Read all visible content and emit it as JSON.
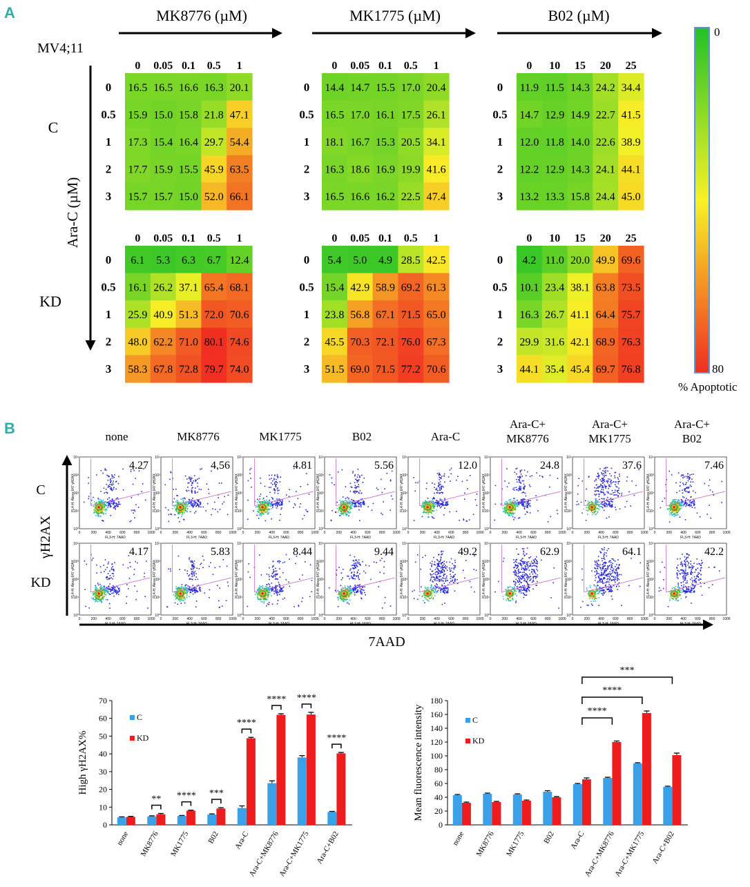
{
  "panel_a": {
    "label": "A",
    "cell_line": "MV4;11",
    "drug_headers": [
      "MK8776 (µM)",
      "MK1775 (µM)",
      "B02 (µM)"
    ],
    "y_axis_label": "Ara-C  (µM)",
    "row_group_labels": [
      "C",
      "KD"
    ],
    "row_labels": [
      "0",
      "0.5",
      "1",
      "2",
      "3"
    ],
    "col_headers": [
      [
        "0",
        "0.05",
        "0.1",
        "0.5",
        "1"
      ],
      [
        "0",
        "0.05",
        "0.1",
        "0.5",
        "1"
      ],
      [
        "0",
        "10",
        "15",
        "20",
        "25"
      ]
    ],
    "heatmaps": [
      [
        [
          [
            16.5,
            16.5,
            16.6,
            16.3,
            20.1
          ],
          [
            15.9,
            15.0,
            15.8,
            21.8,
            47.1
          ],
          [
            17.3,
            15.4,
            16.4,
            29.7,
            54.4
          ],
          [
            17.7,
            15.9,
            15.5,
            45.9,
            63.5
          ],
          [
            15.7,
            15.7,
            15.0,
            52.0,
            66.1
          ]
        ],
        [
          [
            14.4,
            14.7,
            15.5,
            17.0,
            20.4
          ],
          [
            16.5,
            17.0,
            16.1,
            17.5,
            26.1
          ],
          [
            18.1,
            16.7,
            15.3,
            20.5,
            34.1
          ],
          [
            16.3,
            18.6,
            16.9,
            19.9,
            41.6
          ],
          [
            16.5,
            16.6,
            16.2,
            22.5,
            47.4
          ]
        ],
        [
          [
            11.9,
            11.5,
            14.3,
            24.2,
            34.4
          ],
          [
            14.7,
            12.9,
            14.9,
            22.7,
            41.5
          ],
          [
            12.0,
            11.8,
            14.0,
            22.6,
            38.9
          ],
          [
            12.2,
            12.9,
            14.3,
            24.1,
            44.1
          ],
          [
            13.2,
            13.3,
            15.8,
            24.4,
            45.0
          ]
        ]
      ],
      [
        [
          [
            6.1,
            5.3,
            6.3,
            6.7,
            12.4
          ],
          [
            16.1,
            26.2,
            37.1,
            65.4,
            68.1
          ],
          [
            25.9,
            40.9,
            51.3,
            72.0,
            70.6
          ],
          [
            48.0,
            62.2,
            71.0,
            80.1,
            74.6
          ],
          [
            58.3,
            67.8,
            72.8,
            79.7,
            74.0
          ]
        ],
        [
          [
            5.4,
            5.0,
            4.9,
            28.5,
            42.5
          ],
          [
            15.4,
            42.9,
            58.9,
            69.2,
            61.3
          ],
          [
            23.8,
            56.8,
            67.1,
            71.5,
            65.0
          ],
          [
            45.5,
            70.3,
            72.1,
            76.0,
            67.3
          ],
          [
            51.5,
            69.0,
            71.5,
            77.2,
            70.6
          ]
        ],
        [
          [
            4.2,
            11.0,
            20.0,
            49.9,
            69.6
          ],
          [
            10.1,
            23.4,
            38.1,
            63.8,
            73.5
          ],
          [
            16.3,
            26.7,
            41.1,
            64.4,
            75.7
          ],
          [
            29.9,
            31.6,
            42.1,
            68.9,
            76.3
          ],
          [
            44.1,
            35.4,
            45.4,
            69.7,
            76.8
          ]
        ]
      ]
    ],
    "colorbar": {
      "min_label": "0",
      "max_label": "80",
      "min": 0,
      "max": 80,
      "title": "% Apoptotic",
      "colors": [
        "#22c227",
        "#f8f227",
        "#f02f22"
      ]
    }
  },
  "panel_b": {
    "label": "B",
    "conditions": [
      "none",
      "MK8776",
      "MK1775",
      "B02",
      "Ara-C",
      "Ara-C+ MK8776",
      "Ara-C+ MK1775",
      "Ara-C+ B02"
    ],
    "row_labels": [
      "C",
      "KD"
    ],
    "y_axis_label": "γH2AX",
    "x_axis_label": "7AAD",
    "flow_values": [
      [
        "4.27",
        "4.56",
        "4.81",
        "5.56",
        "12.0",
        "24.8",
        "37.6",
        "7.46"
      ],
      [
        "4.17",
        "5.83",
        "8.44",
        "9.44",
        "49.2",
        "62.9",
        "64.1",
        "42.2"
      ]
    ],
    "flow_y_ticks": [
      "10⁰",
      "10¹",
      "10²",
      "10³",
      "10⁴"
    ],
    "flow_x_ticks": [
      "0",
      "200",
      "400",
      "600",
      "800",
      "1000"
    ],
    "flow_x_title": "FL3-H: 7AAD",
    "flow_y_title": "FL4-H: Alexa 647 γH2AX"
  },
  "chart_data": [
    {
      "type": "bar",
      "title": "",
      "xlabel": "",
      "ylabel": "High γH2AX%",
      "ylim": [
        0,
        70
      ],
      "yticks": [
        0,
        10,
        20,
        30,
        40,
        50,
        60,
        70
      ],
      "categories": [
        "none",
        "MK8776",
        "MK1775",
        "B02",
        "Ara-C",
        "Ara-C+MK8776",
        "Ara-C+MK1775",
        "Ara-C+B02"
      ],
      "series": [
        {
          "name": "C",
          "color": "#3aa0e8",
          "values": [
            4.2,
            4.8,
            5.0,
            5.8,
            9.5,
            23.5,
            38.0,
            7.3
          ],
          "errors": [
            0.3,
            0.3,
            0.3,
            0.4,
            1.2,
            1.3,
            1.0,
            0.3
          ]
        },
        {
          "name": "KD",
          "color": "#ee1c1c",
          "values": [
            4.5,
            6.0,
            8.0,
            9.2,
            48.8,
            62.0,
            62.2,
            40.3
          ],
          "errors": [
            0.3,
            0.4,
            0.3,
            0.5,
            0.5,
            0.6,
            1.2,
            0.5
          ]
        }
      ],
      "significance": [
        {
          "categories": [
            1
          ],
          "label": "**"
        },
        {
          "categories": [
            2
          ],
          "label": "****"
        },
        {
          "categories": [
            3
          ],
          "label": "***"
        },
        {
          "categories": [
            4
          ],
          "label": "****"
        },
        {
          "categories": [
            5
          ],
          "label": "****"
        },
        {
          "categories": [
            6
          ],
          "label": "****"
        },
        {
          "categories": [
            7
          ],
          "label": "****"
        }
      ],
      "legend": "top-left"
    },
    {
      "type": "bar",
      "title": "",
      "xlabel": "",
      "ylabel": "Mean fluorescence intensity",
      "ylim": [
        0,
        180
      ],
      "yticks": [
        0,
        20,
        40,
        60,
        80,
        100,
        120,
        140,
        160,
        180
      ],
      "categories": [
        "none",
        "MK8776",
        "MK1775",
        "B02",
        "Ara-C",
        "Ara-C+MK8776",
        "Ara-C+MK1775",
        "Ara-C+B02"
      ],
      "series": [
        {
          "name": "C",
          "color": "#3aa0e8",
          "values": [
            43,
            45,
            44,
            48,
            59,
            68,
            89,
            55
          ],
          "errors": [
            1,
            1,
            1,
            1.5,
            1,
            1,
            1,
            1
          ]
        },
        {
          "name": "KD",
          "color": "#ee1c1c",
          "values": [
            32,
            33,
            35,
            40,
            66,
            120,
            162,
            101
          ],
          "errors": [
            1,
            1,
            1,
            1,
            2,
            1.5,
            3,
            3
          ]
        }
      ],
      "significance": [
        {
          "categories": [
            4,
            5
          ],
          "label": "****"
        },
        {
          "categories": [
            4,
            6
          ],
          "label": "****"
        },
        {
          "categories": [
            4,
            7
          ],
          "label": "***"
        }
      ],
      "legend": "top-left"
    }
  ]
}
